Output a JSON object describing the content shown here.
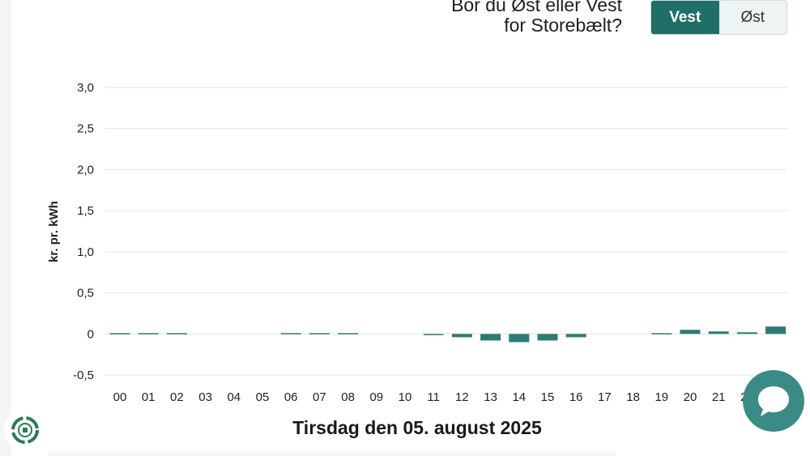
{
  "region": {
    "question_line1": "Bor du Øst eller Vest",
    "question_line2": "for Storebælt?",
    "options": [
      "Vest",
      "Øst"
    ],
    "selected": "Vest"
  },
  "chart_data": {
    "type": "bar",
    "ylabel": "kr. pr. kWh",
    "ylim": [
      -0.5,
      3.0
    ],
    "yticks": [
      "3,0",
      "2,5",
      "2,0",
      "1,5",
      "1,0",
      "0,5",
      "0",
      "-0,5"
    ],
    "ytick_values": [
      3.0,
      2.5,
      2.0,
      1.5,
      1.0,
      0.5,
      0.0,
      -0.5
    ],
    "categories": [
      "00",
      "01",
      "02",
      "03",
      "04",
      "05",
      "06",
      "07",
      "08",
      "09",
      "10",
      "11",
      "12",
      "13",
      "14",
      "15",
      "16",
      "17",
      "18",
      "19",
      "20",
      "21",
      "22",
      "23"
    ],
    "values": [
      0.01,
      0.01,
      0.01,
      0,
      0,
      0,
      0.01,
      0.01,
      0.01,
      0,
      0,
      -0.01,
      -0.04,
      -0.08,
      -0.1,
      -0.08,
      -0.04,
      0,
      0,
      0.01,
      0.05,
      0.03,
      0.02,
      0.09
    ],
    "bar_color": "#2e7b74",
    "grid": true
  },
  "date_title": "Tirsdag den 05. august 2025",
  "icons": {
    "chat": "chat-bubble-icon",
    "logo": "recycle-plug-logo-icon"
  }
}
